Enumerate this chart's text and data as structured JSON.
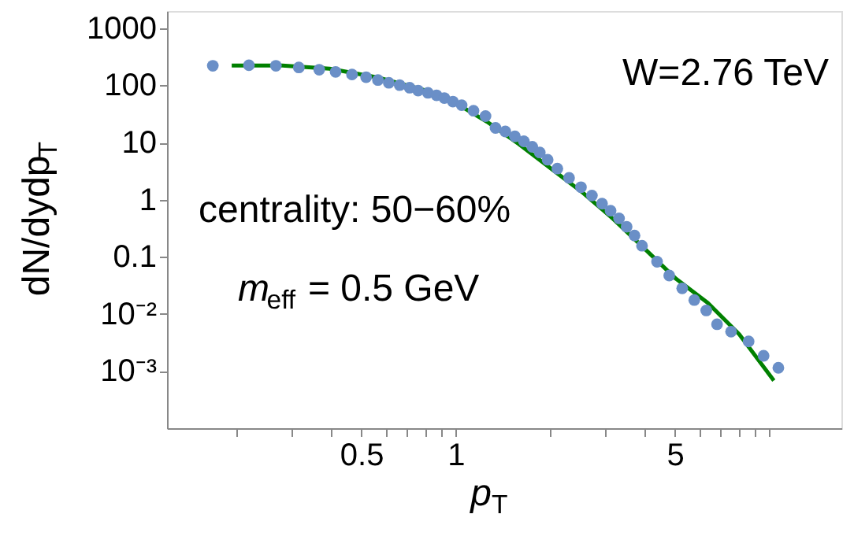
{
  "chart_data": {
    "type": "scatter",
    "xlabel": "p$_{T}$",
    "ylabel": "dN/dydp$_{T}$",
    "log": "xy",
    "grid": false,
    "legend": false,
    "xlim": [
      0.12,
      17
    ],
    "ylim": [
      0.0001,
      2000
    ],
    "xticks": [
      {
        "value": 0.2,
        "label": null
      },
      {
        "value": 0.3,
        "label": null
      },
      {
        "value": 0.4,
        "label": null
      },
      0.5,
      {
        "value": 0.6,
        "label": null
      },
      {
        "value": 0.7,
        "label": null
      },
      {
        "value": 0.8,
        "label": null
      },
      {
        "value": 0.9,
        "label": null
      },
      1,
      {
        "value": 2,
        "label": null
      },
      {
        "value": 3,
        "label": null
      },
      {
        "value": 4,
        "label": null
      },
      5,
      {
        "value": 6,
        "label": null
      },
      {
        "value": 7,
        "label": null
      },
      {
        "value": 8,
        "label": null
      },
      {
        "value": 9,
        "label": null
      },
      {
        "value": 10,
        "label": null
      }
    ],
    "yticks": [
      {
        "value": 0.001,
        "label": "10⁻³"
      },
      {
        "value": 0.01,
        "label": "10⁻²"
      },
      0.1,
      1,
      10,
      100,
      1000
    ],
    "annotations": [
      "W=2.76 TeV",
      "centrality: 50−60%",
      "m$_{eff}$ = 0.5 GeV"
    ],
    "series": [
      {
        "marker": "circle",
        "color": "#6a8fc7",
        "x": [
          0.168,
          0.219,
          0.267,
          0.316,
          0.367,
          0.414,
          0.467,
          0.518,
          0.565,
          0.612,
          0.663,
          0.713,
          0.759,
          0.816,
          0.869,
          0.92,
          0.98,
          1.045,
          1.14,
          1.245,
          1.34,
          1.44,
          1.545,
          1.65,
          1.755,
          1.855,
          1.965,
          2.11,
          2.3,
          2.51,
          2.72,
          2.93,
          3.12,
          3.32,
          3.51,
          3.72,
          3.93,
          4.39,
          4.8,
          5.28,
          5.77,
          6.3,
          6.82,
          7.56,
          8.6,
          9.6,
          10.7
        ],
        "values": [
          220,
          225,
          220,
          206,
          188,
          172,
          155,
          139,
          124,
          111,
          101,
          91,
          81,
          74,
          67,
          60,
          52,
          45,
          36,
          29,
          18,
          15.6,
          12.8,
          10.5,
          8.4,
          6.7,
          5.0,
          3.5,
          2.4,
          1.65,
          1.18,
          0.85,
          0.64,
          0.47,
          0.335,
          0.236,
          0.156,
          0.082,
          0.047,
          0.028,
          0.0175,
          0.0115,
          0.0066,
          0.0049,
          0.0033,
          0.00185,
          0.00114
        ]
      },
      {
        "type": "line",
        "line_style": "solid",
        "color": "#008000",
        "x": [
          0.193,
          0.28,
          0.396,
          0.561,
          0.794,
          1.0,
          1.26,
          1.59,
          2.0,
          2.52,
          3.18,
          4.01,
          5.05,
          6.37,
          8.03,
          10.35
        ],
        "values": [
          222,
          222,
          196,
          138,
          83,
          49,
          23,
          9.4,
          3.6,
          1.38,
          0.46,
          0.138,
          0.041,
          0.0156,
          0.0044,
          0.00068
        ]
      }
    ]
  }
}
